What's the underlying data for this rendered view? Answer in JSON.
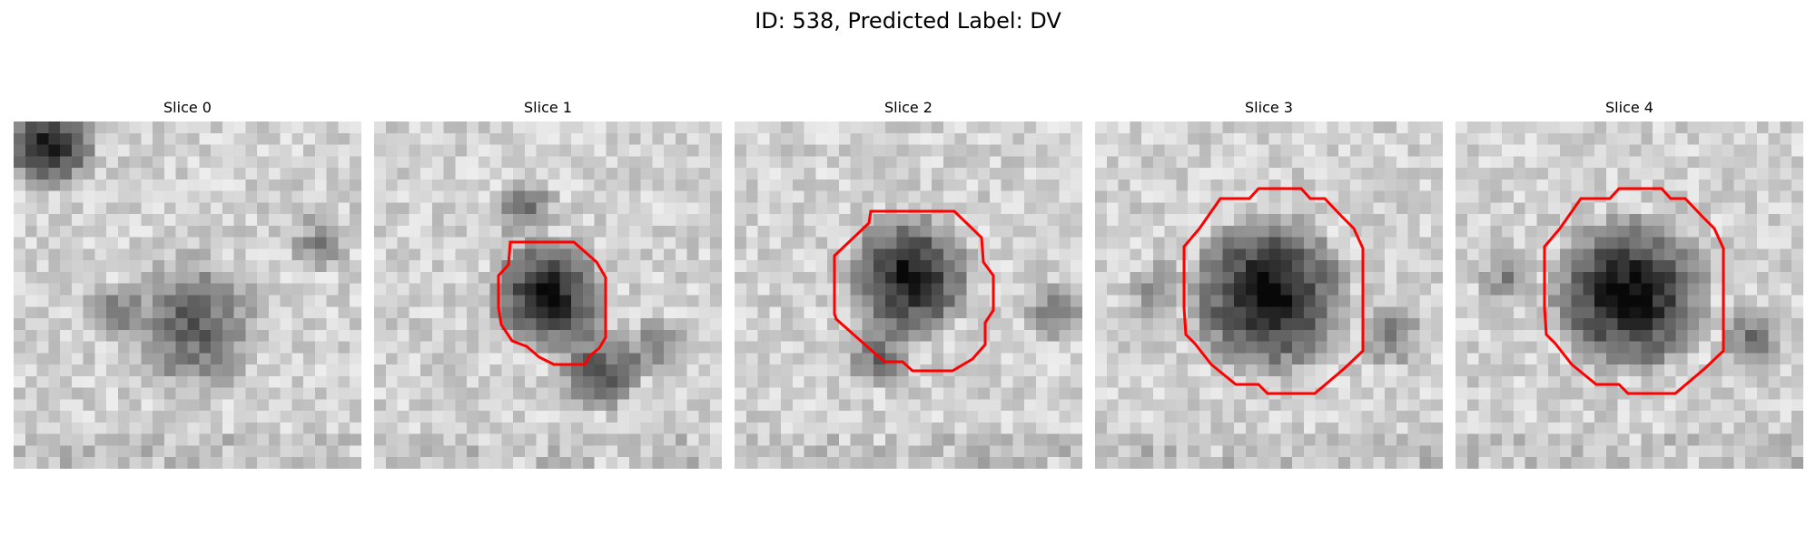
{
  "figure": {
    "title": "ID: 538, Predicted Label: DV"
  },
  "slices": [
    {
      "title": "Slice 0",
      "has_contour": false
    },
    {
      "title": "Slice 1",
      "has_contour": true
    },
    {
      "title": "Slice 2",
      "has_contour": true
    },
    {
      "title": "Slice 3",
      "has_contour": true
    },
    {
      "title": "Slice 4",
      "has_contour": true
    }
  ],
  "colors": {
    "contour": "#ff0000",
    "background": "#ffffff"
  }
}
